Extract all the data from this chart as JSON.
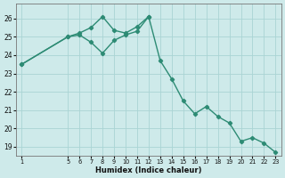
{
  "line1_x": [
    1,
    5,
    6,
    7,
    8,
    9,
    10,
    11,
    12,
    13,
    14,
    15,
    16,
    17,
    18,
    19,
    20,
    21,
    22,
    23
  ],
  "line1_y": [
    23.5,
    25.0,
    25.2,
    25.5,
    26.1,
    25.35,
    25.2,
    25.55,
    26.1,
    23.7,
    22.7,
    21.5,
    20.8,
    21.2,
    20.65,
    20.3,
    19.3,
    19.5,
    19.2,
    18.7
  ],
  "line2_x": [
    1,
    5,
    6,
    7,
    8,
    9,
    10,
    11,
    12
  ],
  "line2_y": [
    23.5,
    25.0,
    25.1,
    24.7,
    24.1,
    24.8,
    25.1,
    25.3,
    26.1
  ],
  "color": "#2d8b74",
  "bg_color": "#ceeaea",
  "grid_color": "#aad4d4",
  "xlabel": "Humidex (Indice chaleur)",
  "ylim": [
    18.5,
    26.8
  ],
  "xlim": [
    0.5,
    23.5
  ],
  "yticks": [
    19,
    20,
    21,
    22,
    23,
    24,
    25,
    26
  ],
  "xticks": [
    1,
    5,
    6,
    7,
    8,
    9,
    10,
    11,
    12,
    13,
    14,
    15,
    16,
    17,
    18,
    19,
    20,
    21,
    22,
    23
  ]
}
